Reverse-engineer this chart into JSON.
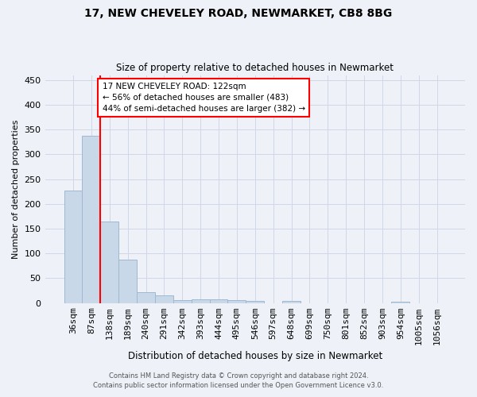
{
  "title1": "17, NEW CHEVELEY ROAD, NEWMARKET, CB8 8BG",
  "title2": "Size of property relative to detached houses in Newmarket",
  "xlabel": "Distribution of detached houses by size in Newmarket",
  "ylabel": "Number of detached properties",
  "categories": [
    "36sqm",
    "87sqm",
    "138sqm",
    "189sqm",
    "240sqm",
    "291sqm",
    "342sqm",
    "393sqm",
    "444sqm",
    "495sqm",
    "546sqm",
    "597sqm",
    "648sqm",
    "699sqm",
    "750sqm",
    "801sqm",
    "852sqm",
    "903sqm",
    "954sqm",
    "1005sqm",
    "1056sqm"
  ],
  "values": [
    227,
    338,
    165,
    88,
    22,
    15,
    6,
    7,
    8,
    5,
    4,
    0,
    4,
    0,
    0,
    0,
    0,
    0,
    3,
    0,
    0
  ],
  "bar_color": "#c8d8e8",
  "bar_edge_color": "#a0b8d0",
  "annotation_line1": "17 NEW CHEVELEY ROAD: 122sqm",
  "annotation_line2": "← 56% of detached houses are smaller (483)",
  "annotation_line3": "44% of semi-detached houses are larger (382) →",
  "footer1": "Contains HM Land Registry data © Crown copyright and database right 2024.",
  "footer2": "Contains public sector information licensed under the Open Government Licence v3.0.",
  "bg_color": "#eef2f8",
  "grid_color": "#d0d8e8",
  "ylim": [
    0,
    460
  ],
  "yticks": [
    0,
    50,
    100,
    150,
    200,
    250,
    300,
    350,
    400,
    450
  ]
}
